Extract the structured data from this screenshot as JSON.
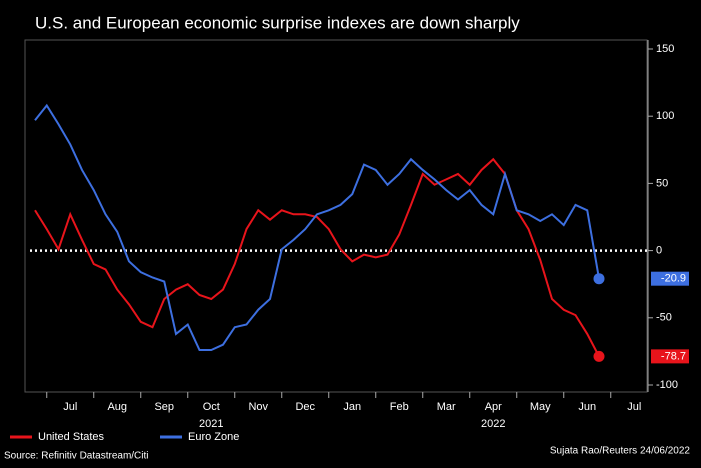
{
  "chart_data": {
    "type": "line",
    "title": "U.S. and European economic surprise indexes are down sharply",
    "source": "Source: Refinitiv Datastream/Citi",
    "credit": "Sujata Rao/Reuters 24/06/2022",
    "year_labels": [
      {
        "label": "2021",
        "at": "Oct"
      },
      {
        "label": "2022",
        "at": "Apr"
      }
    ],
    "categories": [
      null,
      null,
      null,
      "Jul",
      null,
      null,
      null,
      "Aug",
      null,
      null,
      null,
      "Sep",
      null,
      null,
      null,
      "Oct",
      null,
      null,
      null,
      "Nov",
      null,
      null,
      null,
      "Dec",
      null,
      null,
      null,
      "Jan",
      null,
      null,
      null,
      "Feb",
      null,
      null,
      null,
      "Mar",
      null,
      null,
      null,
      "Apr",
      null,
      null,
      null,
      "May",
      null,
      null,
      null,
      "Jun",
      null,
      null,
      null,
      "Jul"
    ],
    "series": [
      {
        "name": "United States",
        "color": "#e8141b",
        "values": [
          30,
          16,
          1,
          27,
          8,
          -10,
          -14,
          -29,
          -40,
          -53,
          -57,
          -36,
          -29,
          -25,
          -33,
          -36,
          -29,
          -10,
          16,
          30,
          23,
          30,
          27,
          27,
          25,
          16,
          1,
          -8,
          -3,
          -5,
          -3,
          12,
          34,
          57,
          49,
          53,
          57,
          49,
          60,
          68,
          57,
          30,
          16,
          -7,
          -36,
          -44,
          -48,
          -62,
          -78.7,
          null,
          null,
          null
        ]
      },
      {
        "name": "Euro Zone",
        "color": "#3d6fe0",
        "values": [
          97,
          108,
          94,
          79,
          60,
          45,
          27,
          14,
          -8,
          -16,
          -20,
          -23,
          -62,
          -55,
          -74,
          -74,
          -70,
          -57,
          -55,
          -44,
          -36,
          1,
          8,
          16,
          27,
          30,
          34,
          42,
          64,
          60,
          49,
          57,
          68,
          60,
          53,
          45,
          38,
          45,
          34,
          27,
          57,
          30,
          27,
          22,
          27,
          19,
          34,
          30,
          -20.9,
          null,
          null,
          null
        ]
      }
    ],
    "ylim": [
      -110,
      155
    ],
    "yticks": [
      -100,
      -50,
      0,
      50,
      100,
      150
    ],
    "hline": 0,
    "grid": false,
    "legend": "bottom-left"
  }
}
